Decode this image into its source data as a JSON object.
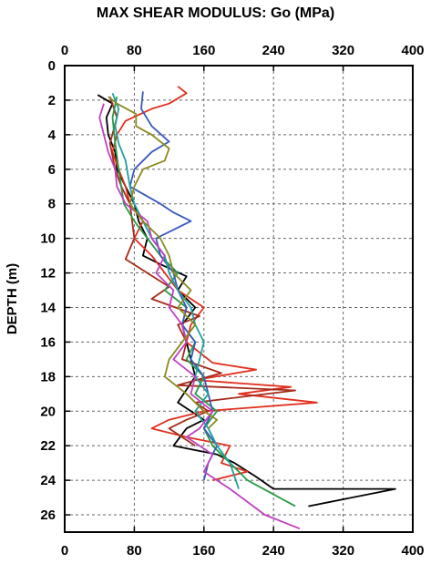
{
  "chart_data": {
    "type": "line",
    "title": "MAX SHEAR MODULUS: Go (MPa)",
    "xlabel": "",
    "ylabel": "DEPTH (m)",
    "xlim": [
      0,
      400
    ],
    "ylim": [
      0,
      27
    ],
    "x_ticks": [
      0,
      80,
      160,
      240,
      320,
      400
    ],
    "y_ticks": [
      0,
      2,
      4,
      6,
      8,
      10,
      12,
      14,
      16,
      18,
      20,
      22,
      24,
      26
    ],
    "y_inverted": true,
    "grid": true,
    "x_axis_both_top_and_bottom": true,
    "series": [
      {
        "color": "#000000",
        "points": [
          [
            38,
            1.7
          ],
          [
            55,
            2.2
          ],
          [
            48,
            3
          ],
          [
            50,
            4
          ],
          [
            58,
            5
          ],
          [
            60,
            6
          ],
          [
            70,
            7
          ],
          [
            80,
            8
          ],
          [
            85,
            9
          ],
          [
            95,
            10
          ],
          [
            90,
            11
          ],
          [
            110,
            11.5
          ],
          [
            140,
            12.2
          ],
          [
            130,
            13
          ],
          [
            150,
            14
          ],
          [
            135,
            15
          ],
          [
            140,
            16
          ],
          [
            145,
            17
          ],
          [
            150,
            18
          ],
          [
            130,
            19.5
          ],
          [
            160,
            20.5
          ],
          [
            140,
            21
          ],
          [
            125,
            22
          ],
          [
            175,
            22.5
          ],
          [
            195,
            23
          ],
          [
            220,
            23.8
          ],
          [
            240,
            24.5
          ],
          [
            380,
            24.5
          ],
          [
            280,
            25.5
          ]
        ]
      },
      {
        "color": "#e03020",
        "points": [
          [
            130,
            1.2
          ],
          [
            140,
            1.6
          ],
          [
            120,
            2.2
          ],
          [
            100,
            2.5
          ],
          [
            70,
            3.2
          ],
          [
            60,
            4
          ],
          [
            55,
            5
          ],
          [
            62,
            6
          ],
          [
            70,
            7
          ],
          [
            75,
            8
          ],
          [
            90,
            9
          ],
          [
            80,
            10
          ],
          [
            100,
            11
          ],
          [
            115,
            12
          ],
          [
            130,
            13
          ],
          [
            160,
            14
          ],
          [
            145,
            15
          ],
          [
            140,
            16
          ],
          [
            170,
            17.2
          ],
          [
            220,
            17.6
          ],
          [
            150,
            18.2
          ],
          [
            260,
            18.6
          ],
          [
            200,
            19
          ],
          [
            290,
            19.5
          ],
          [
            160,
            20
          ],
          [
            120,
            20.5
          ],
          [
            100,
            21
          ],
          [
            140,
            21.5
          ],
          [
            190,
            22
          ],
          [
            180,
            23
          ],
          [
            210,
            23.5
          ],
          [
            170,
            24
          ]
        ]
      },
      {
        "color": "#a52a1a",
        "points": [
          [
            52,
            1.8
          ],
          [
            60,
            3
          ],
          [
            52,
            4.5
          ],
          [
            58,
            6
          ],
          [
            65,
            7
          ],
          [
            75,
            8
          ],
          [
            80,
            10
          ],
          [
            70,
            11.2
          ],
          [
            95,
            12
          ],
          [
            120,
            12.8
          ],
          [
            100,
            13.5
          ],
          [
            155,
            14.5
          ],
          [
            130,
            15
          ],
          [
            140,
            16
          ],
          [
            135,
            17
          ],
          [
            180,
            17.8
          ],
          [
            130,
            18.5
          ],
          [
            265,
            18.8
          ],
          [
            150,
            19.5
          ],
          [
            165,
            20
          ],
          [
            140,
            20.5
          ],
          [
            120,
            21
          ],
          [
            150,
            22
          ]
        ]
      },
      {
        "color": "#2a9a48",
        "points": [
          [
            60,
            1.8
          ],
          [
            55,
            3
          ],
          [
            58,
            4.5
          ],
          [
            62,
            6
          ],
          [
            68,
            8
          ],
          [
            80,
            9
          ],
          [
            95,
            10
          ],
          [
            110,
            11
          ],
          [
            130,
            12
          ],
          [
            115,
            13
          ],
          [
            140,
            14
          ],
          [
            135,
            15
          ],
          [
            150,
            16
          ],
          [
            140,
            17
          ],
          [
            160,
            18
          ],
          [
            150,
            19
          ],
          [
            175,
            20
          ],
          [
            160,
            21
          ],
          [
            170,
            22
          ],
          [
            190,
            23
          ],
          [
            210,
            24
          ],
          [
            265,
            25.5
          ]
        ]
      },
      {
        "color": "#3a5ab8",
        "points": [
          [
            90,
            1.5
          ],
          [
            88,
            2.5
          ],
          [
            100,
            3.5
          ],
          [
            120,
            4.4
          ],
          [
            100,
            5
          ],
          [
            80,
            6
          ],
          [
            75,
            7
          ],
          [
            110,
            8
          ],
          [
            125,
            8.5
          ],
          [
            145,
            9
          ],
          [
            105,
            10
          ],
          [
            110,
            11
          ],
          [
            125,
            12
          ],
          [
            130,
            13
          ],
          [
            140,
            14
          ],
          [
            135,
            15
          ],
          [
            150,
            16
          ],
          [
            145,
            17
          ],
          [
            160,
            18
          ],
          [
            165,
            19
          ],
          [
            170,
            20
          ],
          [
            160,
            21
          ],
          [
            175,
            22
          ],
          [
            165,
            23
          ],
          [
            160,
            24
          ]
        ]
      },
      {
        "color": "#20a0a0",
        "points": [
          [
            55,
            1.6
          ],
          [
            62,
            2.5
          ],
          [
            58,
            3.5
          ],
          [
            62,
            4.5
          ],
          [
            70,
            5.5
          ],
          [
            75,
            7
          ],
          [
            80,
            8
          ],
          [
            90,
            9
          ],
          [
            100,
            10
          ],
          [
            115,
            11
          ],
          [
            120,
            12
          ],
          [
            130,
            13
          ],
          [
            145,
            14
          ],
          [
            150,
            15
          ],
          [
            160,
            16
          ],
          [
            155,
            17
          ],
          [
            150,
            18
          ],
          [
            165,
            19
          ],
          [
            150,
            20
          ],
          [
            165,
            21
          ],
          [
            175,
            22
          ],
          [
            190,
            23
          ],
          [
            200,
            24.5
          ]
        ]
      },
      {
        "color": "#c040c0",
        "points": [
          [
            45,
            2.2
          ],
          [
            40,
            3
          ],
          [
            45,
            4
          ],
          [
            50,
            5
          ],
          [
            58,
            6
          ],
          [
            60,
            7
          ],
          [
            70,
            8
          ],
          [
            95,
            9
          ],
          [
            100,
            10
          ],
          [
            115,
            11
          ],
          [
            105,
            12
          ],
          [
            125,
            13
          ],
          [
            120,
            14
          ],
          [
            135,
            15
          ],
          [
            140,
            16
          ],
          [
            125,
            17
          ],
          [
            150,
            18
          ],
          [
            145,
            19
          ],
          [
            170,
            20
          ],
          [
            155,
            21
          ],
          [
            140,
            21.5
          ],
          [
            170,
            22.5
          ],
          [
            160,
            23.5
          ],
          [
            190,
            24.5
          ],
          [
            230,
            26
          ],
          [
            270,
            26.8
          ]
        ]
      },
      {
        "color": "#8a8a20",
        "points": [
          [
            50,
            1.8
          ],
          [
            60,
            2.2
          ],
          [
            82,
            2.8
          ],
          [
            82,
            3.5
          ],
          [
            100,
            4
          ],
          [
            120,
            4.8
          ],
          [
            115,
            5.5
          ],
          [
            90,
            6
          ],
          [
            80,
            7
          ],
          [
            75,
            8
          ],
          [
            90,
            9
          ],
          [
            110,
            10
          ],
          [
            120,
            11
          ],
          [
            125,
            12
          ],
          [
            145,
            13
          ],
          [
            130,
            14
          ],
          [
            150,
            15
          ],
          [
            135,
            16
          ],
          [
            120,
            17
          ],
          [
            115,
            18
          ],
          [
            140,
            19
          ],
          [
            160,
            20
          ],
          [
            175,
            20.5
          ],
          [
            165,
            21
          ]
        ]
      }
    ]
  }
}
